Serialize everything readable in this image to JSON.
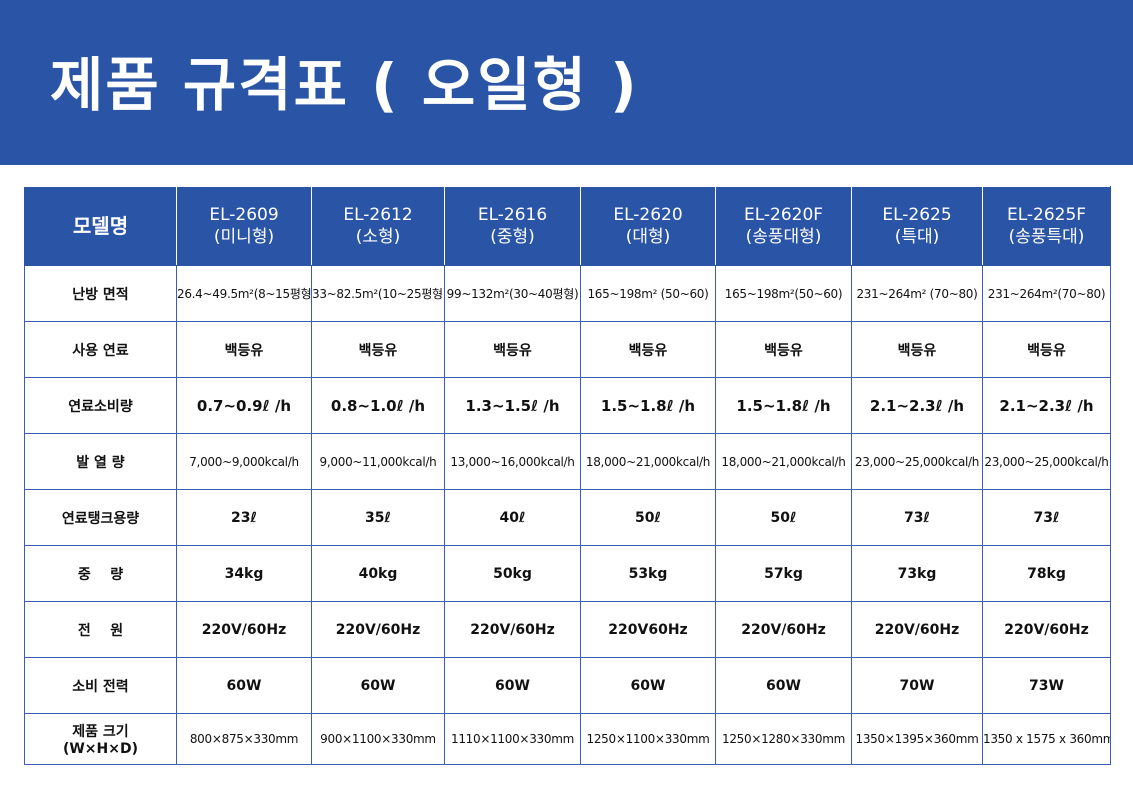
{
  "title": "제품 규격표 ( 오일형 )",
  "table": {
    "corner": "모델명",
    "models": [
      {
        "name": "EL-2609",
        "type": "(미니형)"
      },
      {
        "name": "EL-2612",
        "type": "(소형)"
      },
      {
        "name": "EL-2616",
        "type": "(중형)"
      },
      {
        "name": "EL-2620",
        "type": "(대형)"
      },
      {
        "name": "EL-2620F",
        "type": "(송풍대형)"
      },
      {
        "name": "EL-2625",
        "type": "(특대)"
      },
      {
        "name": "EL-2625F",
        "type": "(송풍특대)"
      }
    ],
    "rows": [
      {
        "label": "난방 면적",
        "style": "small",
        "values": [
          "26.4~49.5m²(8~15평형)",
          "33~82.5m²(10~25평형)",
          "99~132m²(30~40평형)",
          "165~198m² (50~60)",
          "165~198m²(50~60)",
          "231~264m² (70~80)",
          "231~264m²(70~80)"
        ]
      },
      {
        "label": "사용 연료",
        "style": "bold",
        "values": [
          "백등유",
          "백등유",
          "백등유",
          "백등유",
          "백등유",
          "백등유",
          "백등유"
        ]
      },
      {
        "label": "연료소비량",
        "style": "big",
        "values": [
          "0.7~0.9ℓ /h",
          "0.8~1.0ℓ /h",
          "1.3~1.5ℓ /h",
          "1.5~1.8ℓ /h",
          "1.5~1.8ℓ /h",
          "2.1~2.3ℓ /h",
          "2.1~2.3ℓ /h"
        ]
      },
      {
        "label": "발 열 량",
        "style": "small",
        "values": [
          "7,000~9,000kcal/h",
          "9,000~11,000kcal/h",
          "13,000~16,000kcal/h",
          "18,000~21,000kcal/h",
          "18,000~21,000kcal/h",
          "23,000~25,000kcal/h",
          "23,000~25,000kcal/h"
        ]
      },
      {
        "label": "연료탱크용량",
        "style": "bold",
        "values": [
          "23ℓ",
          "35ℓ",
          "40ℓ",
          "50ℓ",
          "50ℓ",
          "73ℓ",
          "73ℓ"
        ]
      },
      {
        "label": "중    량",
        "style": "bold",
        "values": [
          "34kg",
          "40kg",
          "50kg",
          "53kg",
          "57kg",
          "73kg",
          "78kg"
        ]
      },
      {
        "label": "전    원",
        "style": "bold",
        "values": [
          "220V/60Hz",
          "220V/60Hz",
          "220V/60Hz",
          "220V60Hz",
          "220V/60Hz",
          "220V/60Hz",
          "220V/60Hz"
        ]
      },
      {
        "label": "소비 전력",
        "style": "bold",
        "values": [
          "60W",
          "60W",
          "60W",
          "60W",
          "60W",
          "70W",
          "73W"
        ]
      },
      {
        "label": "제품 크기\n(W×H×D)",
        "style": "small",
        "values": [
          "800×875×330mm",
          "900×1100×330mm",
          "1110×1100×330mm",
          "1250×1100×330mm",
          "1250×1280×330mm",
          "1350×1395×360mm",
          "1350 x 1575 x 360mm"
        ]
      }
    ]
  },
  "colors": {
    "brand_blue": "#2a55a6",
    "border_blue": "#3a5fae"
  }
}
